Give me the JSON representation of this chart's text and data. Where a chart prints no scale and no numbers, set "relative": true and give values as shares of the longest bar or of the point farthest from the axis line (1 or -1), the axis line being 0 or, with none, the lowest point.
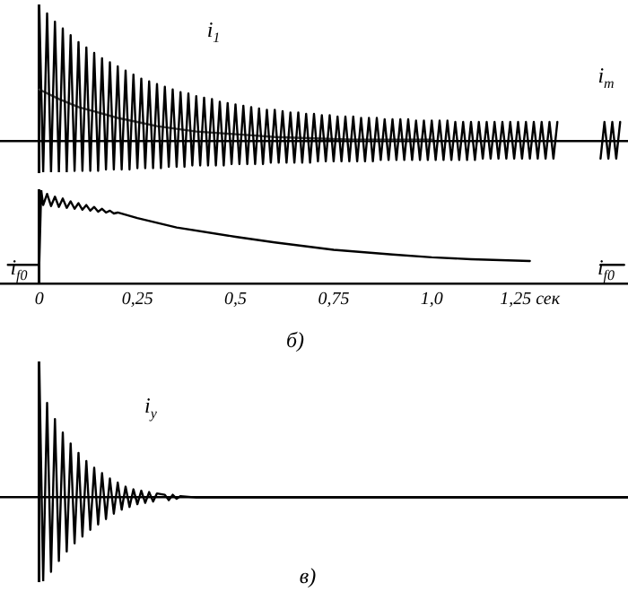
{
  "chart_data": [
    {
      "type": "line",
      "relative": true,
      "xlim": [
        -0.1,
        1.5
      ],
      "tick_labels": false,
      "marker": "none",
      "line_style": "solid",
      "series": [
        {
          "color": "#000000",
          "x": [
            0,
            0.01,
            0.02,
            0.03,
            0.04,
            0.05,
            0.06,
            0.07,
            0.08,
            0.09,
            0.1,
            0.11,
            0.12,
            0.13,
            0.14,
            0.15,
            0.16,
            0.17,
            0.18,
            0.19,
            0.2,
            0.21,
            0.22,
            0.23,
            0.24,
            0.25,
            0.26,
            0.27,
            0.28,
            0.29,
            0.3,
            0.31,
            0.32,
            0.33,
            0.34,
            0.35,
            0.36,
            0.37,
            0.38,
            0.39,
            0.4,
            0.41,
            0.42,
            0.43,
            0.44,
            0.45,
            0.46,
            0.47,
            0.48,
            0.49,
            0.5,
            0.51,
            0.52,
            0.53,
            0.54,
            0.55,
            0.56,
            0.57,
            0.58,
            0.59,
            0.6,
            0.61,
            0.62,
            0.63,
            0.64,
            0.65,
            0.66,
            0.67,
            0.68,
            0.69,
            0.7,
            0.71,
            0.72,
            0.73,
            0.74,
            0.75,
            0.76,
            0.77,
            0.78,
            0.79,
            0.8,
            0.81,
            0.82,
            0.83,
            0.84,
            0.85,
            0.86,
            0.87,
            0.88,
            0.89,
            0.9,
            0.91,
            0.92,
            0.93,
            0.94,
            0.95,
            0.96,
            0.97,
            0.98,
            0.99,
            1.0,
            1.01,
            1.02,
            1.03,
            1.04,
            1.05,
            1.06,
            1.07,
            1.08,
            1.09,
            1.1,
            1.11,
            1.12,
            1.13,
            1.14,
            1.15,
            1.16,
            1.17,
            1.18,
            1.19,
            1.2,
            1.21,
            1.22,
            1.23,
            1.24,
            1.25,
            1.26,
            1.27,
            1.28,
            1.29,
            1.3,
            1.31,
            1.32,
            1.36,
            1.43,
            1.44,
            1.45,
            1.46,
            1.47,
            1.48
          ],
          "values": [
            1.0,
            -0.23,
            0.94,
            -0.23,
            0.88,
            -0.23,
            0.83,
            -0.23,
            0.78,
            -0.22,
            0.73,
            -0.22,
            0.69,
            -0.22,
            0.65,
            -0.22,
            0.61,
            -0.21,
            0.58,
            -0.21,
            0.55,
            -0.21,
            0.52,
            -0.21,
            0.49,
            -0.2,
            0.46,
            -0.2,
            0.44,
            -0.2,
            0.42,
            -0.2,
            0.4,
            -0.19,
            0.38,
            -0.19,
            0.36,
            -0.19,
            0.35,
            -0.18,
            0.33,
            -0.18,
            0.32,
            -0.18,
            0.31,
            -0.18,
            0.29,
            -0.18,
            0.28,
            -0.17,
            0.27,
            -0.17,
            0.26,
            -0.17,
            0.25,
            -0.17,
            0.24,
            -0.17,
            0.23,
            -0.16,
            0.23,
            -0.16,
            0.22,
            -0.16,
            0.21,
            -0.16,
            0.21,
            -0.16,
            0.2,
            -0.16,
            0.2,
            -0.15,
            0.19,
            -0.15,
            0.19,
            -0.15,
            0.18,
            -0.15,
            0.18,
            -0.15,
            0.18,
            -0.15,
            0.17,
            -0.15,
            0.17,
            -0.15,
            0.17,
            -0.14,
            0.16,
            -0.14,
            0.16,
            -0.14,
            0.16,
            -0.14,
            0.16,
            -0.14,
            0.15,
            -0.14,
            0.15,
            -0.14,
            0.15,
            -0.14,
            0.15,
            -0.14,
            0.15,
            -0.14,
            0.14,
            -0.14,
            0.14,
            -0.14,
            0.14,
            -0.14,
            0.14,
            -0.13,
            0.14,
            -0.13,
            0.14,
            -0.13,
            0.14,
            -0.13,
            0.14,
            -0.13,
            0.14,
            -0.13,
            0.14,
            -0.13,
            0.14,
            -0.13,
            0.14,
            -0.13,
            0.14,
            -0.13,
            0.14,
            null,
            -0.13,
            0.14,
            -0.13,
            0.14,
            -0.13,
            0.14
          ]
        },
        {
          "color": "#404040",
          "x": [
            0,
            0.05,
            0.1,
            0.15,
            0.2,
            0.25,
            0.3,
            0.35,
            0.4,
            0.45,
            0.5,
            0.55,
            0.6,
            0.8,
            1.0
          ],
          "values": [
            0.38,
            0.31,
            0.25,
            0.21,
            0.17,
            0.14,
            0.11,
            0.09,
            0.07,
            0.06,
            0.05,
            0.04,
            0.03,
            0.01,
            0.01
          ]
        }
      ],
      "annotations": [
        "i$_{1}$",
        "i$_{т}$"
      ]
    },
    {
      "type": "line",
      "relative": true,
      "xlim": [
        -0.1,
        1.5
      ],
      "tick_labels": "x",
      "marker": "none",
      "line_style": "solid",
      "xticks": [
        0,
        {
          "value": 0.25,
          "label": "0,25"
        },
        {
          "value": 0.5,
          "label": "0,5"
        },
        {
          "value": 0.75,
          "label": "0,75"
        },
        {
          "value": 1.0,
          "label": "1,0"
        },
        {
          "value": 1.25,
          "label": "1,25 сек"
        }
      ],
      "series": [
        {
          "color": "#000000",
          "x": [
            -0.08,
            0,
            0.005,
            0.01,
            0.02,
            0.03,
            0.04,
            0.05,
            0.06,
            0.07,
            0.08,
            0.09,
            0.1,
            0.11,
            0.12,
            0.13,
            0.14,
            0.15,
            0.16,
            0.17,
            0.18,
            0.19,
            0.2,
            0.25,
            0.35,
            0.5,
            0.6,
            0.75,
            0.9,
            1.0,
            1.1,
            1.25
          ],
          "values": [
            0.2,
            0.2,
            1.0,
            0.84,
            0.96,
            0.83,
            0.93,
            0.82,
            0.91,
            0.81,
            0.88,
            0.8,
            0.86,
            0.79,
            0.84,
            0.78,
            0.82,
            0.77,
            0.8,
            0.76,
            0.78,
            0.75,
            0.76,
            0.7,
            0.6,
            0.5,
            0.44,
            0.36,
            0.31,
            0.28,
            0.26,
            0.24
          ]
        },
        {
          "color": "#000000",
          "x": [
            1.43,
            1.49
          ],
          "values": [
            0.2,
            0.2
          ]
        }
      ],
      "annotations": [
        "i$_{f0}$",
        "i$_{f0}$",
        "б)"
      ]
    },
    {
      "type": "line",
      "relative": true,
      "xlim": [
        -0.1,
        1.5
      ],
      "tick_labels": false,
      "marker": "none",
      "line_style": "solid",
      "series": [
        {
          "color": "#000000",
          "x": [
            0,
            0.01,
            0.02,
            0.03,
            0.04,
            0.05,
            0.06,
            0.07,
            0.08,
            0.09,
            0.1,
            0.11,
            0.12,
            0.13,
            0.14,
            0.15,
            0.16,
            0.17,
            0.18,
            0.19,
            0.2,
            0.21,
            0.22,
            0.23,
            0.24,
            0.25,
            0.26,
            0.27,
            0.28,
            0.29,
            0.3,
            0.32,
            0.33,
            0.34,
            0.35,
            0.36,
            0.4,
            0.8,
            1.5
          ],
          "values": [
            1.0,
            -0.62,
            0.7,
            -0.55,
            0.58,
            -0.47,
            0.48,
            -0.4,
            0.4,
            -0.34,
            0.33,
            -0.29,
            0.27,
            -0.24,
            0.22,
            -0.2,
            0.18,
            -0.16,
            0.14,
            -0.12,
            0.11,
            -0.09,
            0.08,
            -0.07,
            0.06,
            -0.05,
            0.05,
            -0.04,
            0.04,
            -0.03,
            0.03,
            0.02,
            -0.02,
            0.02,
            -0.01,
            0.01,
            0,
            0,
            0
          ]
        }
      ],
      "annotations": [
        "i$_{y}$",
        "в)"
      ]
    }
  ]
}
